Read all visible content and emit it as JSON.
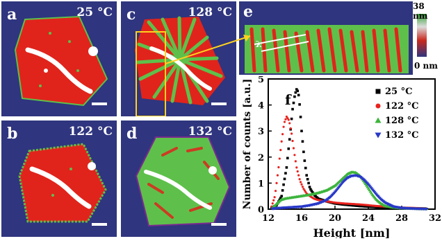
{
  "panels": {
    "a": {
      "label": "a",
      "temperature": "25 °C"
    },
    "b": {
      "label": "b",
      "temperature": "122 °C"
    },
    "c": {
      "label": "c",
      "temperature": "128 °C"
    },
    "d": {
      "label": "d",
      "temperature": "132 °C"
    },
    "e": {
      "label": "e",
      "annotation": "λ"
    },
    "f": {
      "label": "f"
    }
  },
  "colorbar": {
    "max_label": "38 nm",
    "min_label": "0 nm",
    "colors": [
      "#2fa02f",
      "#dcdcdc",
      "#c8281e",
      "#2f357e"
    ]
  },
  "colors": {
    "substrate": "#2f357e",
    "phase_red": "#e0241c",
    "phase_green": "#5ec04a",
    "highlight": "#ffffff",
    "box": "#ffd21e"
  },
  "chart_data": {
    "type": "scatter",
    "title": "",
    "xlabel": "Height  [nm]",
    "ylabel": "Number of counts  [a.u.]",
    "xlim": [
      12,
      32
    ],
    "ylim": [
      0,
      5
    ],
    "xticks": [
      12,
      16,
      20,
      24,
      28,
      32
    ],
    "yticks": [
      0,
      1,
      2,
      3,
      4,
      5
    ],
    "legend_position": "top-right",
    "series": [
      {
        "name": "25 °C",
        "color": "#000000",
        "marker": "square",
        "x": [
          12.4,
          13.0,
          13.6,
          14.2,
          14.6,
          14.9,
          15.2,
          15.4,
          15.6,
          15.8,
          16.0,
          16.3,
          16.6,
          17.0,
          17.5,
          18.0,
          19.0,
          20.0,
          21.0,
          22.0,
          23.0,
          24.0,
          25.0,
          26.0,
          27.0,
          28.0,
          29.0,
          30.0,
          31.0
        ],
        "y": [
          0.05,
          0.15,
          0.5,
          1.6,
          2.8,
          3.8,
          4.4,
          4.6,
          4.5,
          3.9,
          3.0,
          2.0,
          1.3,
          0.8,
          0.55,
          0.4,
          0.3,
          0.22,
          0.18,
          0.15,
          0.12,
          0.1,
          0.08,
          0.06,
          0.05,
          0.04,
          0.03,
          0.02,
          0.02
        ]
      },
      {
        "name": "122 °C",
        "color": "#e8231e",
        "marker": "circle",
        "x": [
          12.4,
          12.8,
          13.2,
          13.6,
          13.9,
          14.2,
          14.5,
          14.8,
          15.1,
          15.4,
          15.8,
          16.2,
          16.6,
          17.0,
          17.5,
          18.0,
          19.0,
          20.0,
          21.0,
          22.0,
          23.0,
          24.0,
          25.0,
          26.0,
          27.0,
          28.0,
          29.0,
          30.0,
          31.0
        ],
        "y": [
          0.1,
          0.5,
          1.5,
          2.6,
          3.3,
          3.55,
          3.4,
          2.9,
          2.2,
          1.6,
          1.1,
          0.8,
          0.6,
          0.5,
          0.4,
          0.35,
          0.3,
          0.25,
          0.22,
          0.2,
          0.18,
          0.15,
          0.12,
          0.1,
          0.08,
          0.06,
          0.05,
          0.04,
          0.03
        ]
      },
      {
        "name": "128 °C",
        "color": "#3cb43c",
        "marker": "triangle-up",
        "x": [
          12.5,
          13.0,
          13.5,
          14.0,
          15.0,
          16.0,
          17.0,
          18.0,
          19.0,
          20.0,
          20.5,
          21.0,
          21.5,
          22.0,
          22.5,
          23.0,
          23.5,
          24.0,
          24.5,
          25.0,
          25.5,
          26.0,
          27.0,
          28.0,
          29.0,
          30.0,
          31.0
        ],
        "y": [
          0.05,
          0.2,
          0.35,
          0.4,
          0.45,
          0.5,
          0.55,
          0.62,
          0.72,
          0.9,
          1.05,
          1.2,
          1.35,
          1.42,
          1.4,
          1.28,
          1.05,
          0.8,
          0.55,
          0.35,
          0.22,
          0.12,
          0.06,
          0.03,
          0.02,
          0.01,
          0.01
        ]
      },
      {
        "name": "132 °C",
        "color": "#2838c8",
        "marker": "triangle-down",
        "x": [
          12.5,
          13.0,
          14.0,
          15.0,
          16.0,
          17.0,
          18.0,
          19.0,
          19.5,
          20.0,
          20.5,
          21.0,
          21.5,
          22.0,
          22.5,
          23.0,
          23.5,
          24.0,
          24.5,
          25.0,
          25.5,
          26.0,
          27.0,
          28.0,
          29.0,
          30.0,
          31.0
        ],
        "y": [
          0.02,
          0.04,
          0.06,
          0.08,
          0.1,
          0.15,
          0.22,
          0.35,
          0.48,
          0.65,
          0.85,
          1.05,
          1.2,
          1.28,
          1.3,
          1.25,
          1.12,
          0.95,
          0.75,
          0.55,
          0.38,
          0.25,
          0.1,
          0.05,
          0.03,
          0.02,
          0.01
        ]
      }
    ]
  }
}
